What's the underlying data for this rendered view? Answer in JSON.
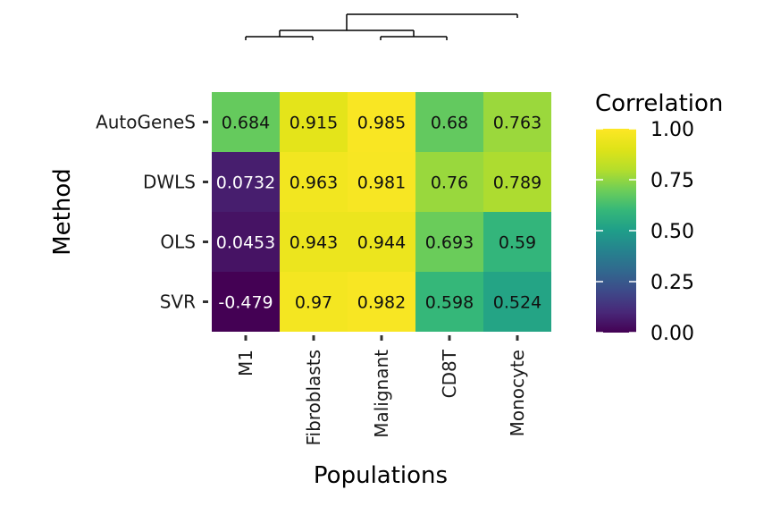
{
  "chart_data": {
    "type": "heatmap",
    "title": "",
    "xlabel": "Populations",
    "ylabel": "Method",
    "rows": [
      "AutoGeneS",
      "DWLS",
      "OLS",
      "SVR"
    ],
    "columns": [
      "M1",
      "Fibroblasts",
      "Malignant",
      "CD8T",
      "Monocyte"
    ],
    "values": [
      [
        0.684,
        0.915,
        0.985,
        0.68,
        0.763
      ],
      [
        0.0732,
        0.963,
        0.981,
        0.76,
        0.789
      ],
      [
        0.0453,
        0.943,
        0.944,
        0.693,
        0.59
      ],
      [
        -0.479,
        0.97,
        0.982,
        0.598,
        0.524
      ]
    ],
    "cell_labels": [
      [
        "0.684",
        "0.915",
        "0.985",
        "0.68",
        "0.763"
      ],
      [
        "0.0732",
        "0.963",
        "0.981",
        "0.76",
        "0.789"
      ],
      [
        "0.0453",
        "0.943",
        "0.944",
        "0.693",
        "0.59"
      ],
      [
        "-0.479",
        "0.97",
        "0.982",
        "0.598",
        "0.524"
      ]
    ],
    "colorbar": {
      "title": "Correlation",
      "range": [
        0,
        1
      ],
      "ticks": [
        0,
        0.25,
        0.5,
        0.75,
        1
      ],
      "tick_labels": [
        "0.00",
        "0.25",
        "0.50",
        "0.75",
        "1.00"
      ],
      "colormap": "viridis"
    },
    "column_dendrogram": true,
    "grid": false,
    "legend_position": "right"
  }
}
